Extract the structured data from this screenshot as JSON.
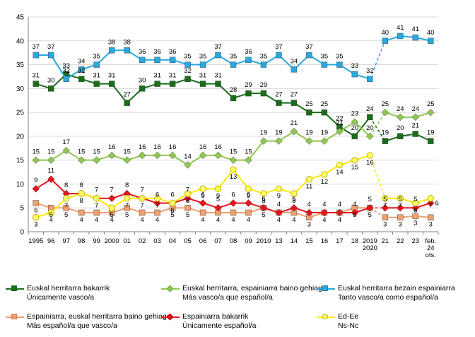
{
  "chart_data": {
    "type": "line",
    "title": "",
    "xlabel": "",
    "ylabel": "",
    "ylim": [
      0,
      45
    ],
    "yticks": [
      0,
      5,
      10,
      15,
      20,
      25,
      30,
      35,
      40,
      45
    ],
    "categories": [
      "1995",
      "96",
      "97",
      "98",
      "99",
      "2000",
      "01",
      "02",
      "03",
      "04",
      "05",
      "06",
      "07",
      "08",
      "09",
      "2010",
      "13",
      "14",
      "15",
      "16",
      "17",
      "18",
      "2019",
      "21",
      "22",
      "23",
      "feb. 24 ots."
    ],
    "category_lines": [
      [
        "1995"
      ],
      [
        "96"
      ],
      [
        "97"
      ],
      [
        "98"
      ],
      [
        "99"
      ],
      [
        "2000"
      ],
      [
        "01"
      ],
      [
        "02"
      ],
      [
        "03"
      ],
      [
        "04"
      ],
      [
        "05"
      ],
      [
        "06"
      ],
      [
        "07"
      ],
      [
        "08"
      ],
      [
        "09"
      ],
      [
        "2010"
      ],
      [
        "13"
      ],
      [
        "14"
      ],
      [
        "15"
      ],
      [
        "16"
      ],
      [
        "17"
      ],
      [
        "18"
      ],
      [
        "2019",
        "2020"
      ],
      [
        "21"
      ],
      [
        "22"
      ],
      [
        "23"
      ],
      [
        "feb.",
        "24",
        "ots."
      ]
    ],
    "grid": true,
    "series": [
      {
        "name": "Euskal herritarra bakarrik / Únicamente vasco/a",
        "legend_lines": [
          "Euskal herritarra bakarrik",
          "Únicamente vasco/a"
        ],
        "color": "#1a6e1a",
        "marker": "square",
        "part1": [
          31,
          30,
          33,
          32,
          31,
          31,
          27,
          30,
          31,
          31,
          32,
          31,
          31,
          28,
          29,
          29,
          27,
          27,
          25,
          25,
          22,
          20,
          24
        ],
        "part1_labels": [
          "31",
          "30",
          "33",
          "32",
          "31",
          "31",
          "27",
          "30",
          "31",
          "31",
          "32",
          "31",
          "31",
          "28",
          "29",
          "29",
          "27",
          "27",
          "25",
          "25",
          "22",
          "20",
          "24"
        ],
        "part2": [
          19,
          20,
          20.5,
          19
        ],
        "part2_labels": [
          "19",
          "20",
          "21",
          "19"
        ]
      },
      {
        "name": "Euskal herritarra, espainiarra baino gehiago / Más vasco/a que español/a",
        "legend_lines": [
          "Euskal herritarra, espainiarra baino gehiago",
          "Más vasco/a que español/a"
        ],
        "color": "#8fc750",
        "marker": "diamond",
        "part1": [
          15,
          15,
          17,
          15,
          15,
          16,
          15,
          16,
          16,
          16,
          14,
          16,
          16,
          15,
          15,
          19,
          19,
          21,
          19,
          19,
          21,
          23,
          20
        ],
        "part1_labels": [
          "15",
          "15",
          "17",
          "15",
          "15",
          "16",
          "15",
          "16",
          "16",
          "16",
          "14",
          "16",
          "16",
          "15",
          "15",
          "19",
          "19",
          "21",
          "19",
          "19",
          "21",
          "23",
          "20"
        ],
        "part2": [
          25,
          24,
          24,
          25
        ],
        "part2_labels": [
          "25",
          "24",
          "24",
          "25"
        ]
      },
      {
        "name": "Euskal herritarra bezain espainiarra / Tanto vasco/a como español/a",
        "legend_lines": [
          "Euskal herritarra bezain espainiarra",
          "Tanto vasco/a como español/a"
        ],
        "color": "#29a8e0",
        "marker": "square",
        "part1": [
          37,
          37,
          32,
          34,
          35,
          38,
          38,
          36,
          36,
          36,
          35,
          35,
          37,
          35,
          36,
          35,
          37,
          34,
          37,
          35,
          35,
          33,
          32
        ],
        "part1_labels": [
          "37",
          "37",
          "32",
          "34",
          "35",
          "38",
          "38",
          "36",
          "36",
          "36",
          "35",
          "35",
          "37",
          "35",
          "36",
          "35",
          "37",
          "34",
          "37",
          "35",
          "35",
          "33",
          "32"
        ],
        "part2": [
          40,
          41,
          40.7,
          40
        ],
        "part2_labels": [
          "40",
          "41",
          "41",
          "40"
        ]
      },
      {
        "name": "Espainiarra, euskal herritarra baino gehiago / Más español/a que vasco/a",
        "legend_lines": [
          "Espainiarra, euskal herritarra baino gehiago",
          "Más español/a que vasco/a"
        ],
        "color": "#f0a070",
        "marker": "square",
        "part1": [
          6,
          5,
          5,
          4,
          4,
          4,
          5,
          4,
          4,
          5,
          5,
          4,
          4,
          4,
          4,
          5,
          4,
          4,
          3,
          4,
          4,
          5,
          5
        ],
        "part1_labels": [
          "6",
          "5",
          "5",
          "4",
          "4",
          "4",
          "5",
          "4",
          "4",
          "5",
          "5",
          "4",
          "4",
          "4",
          "4",
          "5",
          "4",
          "4",
          "3",
          "4",
          "4",
          "5",
          "5"
        ],
        "part2": [
          3,
          3,
          3.3,
          3
        ],
        "part2_labels": [
          "3",
          "3",
          "3",
          "3"
        ]
      },
      {
        "name": "Espainiarra bakarrik / Únicamente español/a",
        "legend_lines": [
          "Espainiarra bakarrik",
          "Únicamente español/a"
        ],
        "color": "#e8141c",
        "marker": "diamond",
        "part1": [
          9,
          11,
          8,
          8,
          7,
          7,
          8,
          7,
          6,
          6,
          7,
          6,
          5,
          6,
          6,
          5,
          4,
          5,
          4,
          4,
          4,
          4,
          5
        ],
        "part1_labels": [
          "9",
          "11",
          "8",
          "8",
          "7",
          "7",
          "8",
          "7",
          "6",
          "6",
          "7",
          "6",
          "5",
          "6",
          "6",
          "5",
          "4",
          "5",
          "4",
          "4",
          "4",
          "4",
          "5"
        ],
        "part2": [
          5,
          5,
          5,
          6
        ],
        "part2_labels": [
          "5",
          "5",
          "5",
          "6"
        ]
      },
      {
        "name": "Ed-Ee / Ns-Nc",
        "legend_lines": [
          "Ed-Ee",
          "Ns-Nc"
        ],
        "color": "#ffe800",
        "marker": "circle",
        "part1": [
          3,
          4,
          7,
          8,
          7,
          5,
          7,
          7,
          7,
          6,
          8,
          9,
          9,
          13,
          9,
          8,
          9,
          8,
          11,
          12,
          14,
          15,
          16
        ],
        "part1_labels": [
          "3",
          "4",
          "7",
          "8",
          "7",
          "5",
          "7",
          "7",
          "7",
          "6",
          "8",
          "9",
          "9",
          "13",
          "9",
          "8",
          "9",
          "8",
          "11",
          "12",
          "14",
          "15",
          "16"
        ],
        "part2": [
          7,
          7,
          6,
          7
        ],
        "part2_labels": [
          "7",
          "7",
          "6",
          "7"
        ]
      }
    ]
  }
}
